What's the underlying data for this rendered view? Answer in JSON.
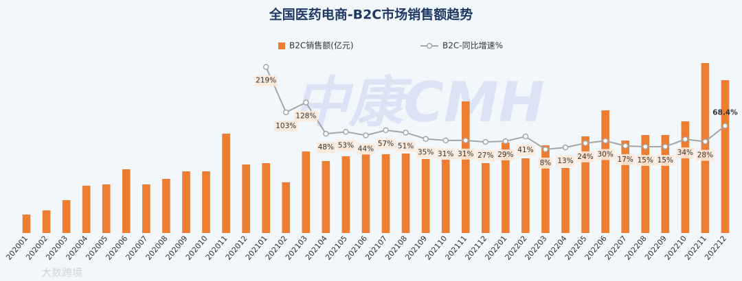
{
  "chart_data": {
    "type": "bar_line",
    "title": "全国医药电商-B2C市场销售额趋势",
    "watermarks": [
      "中康CMH",
      "大数跨境"
    ],
    "categories": [
      "202001",
      "202002",
      "202003",
      "202004",
      "202005",
      "202006",
      "202007",
      "202008",
      "202009",
      "202010",
      "202011",
      "202012",
      "202101",
      "202102",
      "202103",
      "202104",
      "202105",
      "202106",
      "202107",
      "202108",
      "202109",
      "202110",
      "202111",
      "202112",
      "202201",
      "202202",
      "202203",
      "202204",
      "202205",
      "202206",
      "202207",
      "202208",
      "202209",
      "202210",
      "202211",
      "202212"
    ],
    "ylim": [
      0,
      260
    ],
    "y2lim": [
      -206,
      250
    ],
    "series": [
      {
        "name": "B2C销售额(亿元)",
        "color": "#ed7d31",
        "type": "bar",
        "values": [
          27,
          33,
          48,
          69,
          71,
          93,
          71,
          79,
          90,
          90,
          145,
          100,
          102,
          74,
          119,
          105,
          112,
          115,
          115,
          116,
          108,
          107,
          192,
          102,
          132,
          109,
          128,
          95,
          141,
          179,
          135,
          143,
          143,
          163,
          248,
          223
        ]
      },
      {
        "name": "B2C-同比增速%",
        "color": "#a5a5a5",
        "type": "line",
        "axis": "y2",
        "values": [
          null,
          null,
          null,
          null,
          null,
          null,
          null,
          null,
          null,
          null,
          null,
          null,
          219,
          103,
          128,
          48,
          53,
          44,
          57,
          51,
          35,
          31,
          31,
          27,
          29,
          41,
          8,
          13,
          24,
          30,
          17,
          15,
          15,
          34,
          28,
          68.4
        ],
        "value_labels": [
          null,
          null,
          null,
          null,
          null,
          null,
          null,
          null,
          null,
          null,
          null,
          null,
          "219%",
          "103%",
          "128%",
          "48%",
          "53%",
          "44%",
          "57%",
          "51%",
          "35%",
          "31%",
          "31%",
          "27%",
          "29%",
          "41%",
          "8%",
          "13%",
          "24%",
          "30%",
          "17%",
          "15%",
          "15%",
          "34%",
          "28%",
          "68.4%"
        ]
      }
    ]
  }
}
